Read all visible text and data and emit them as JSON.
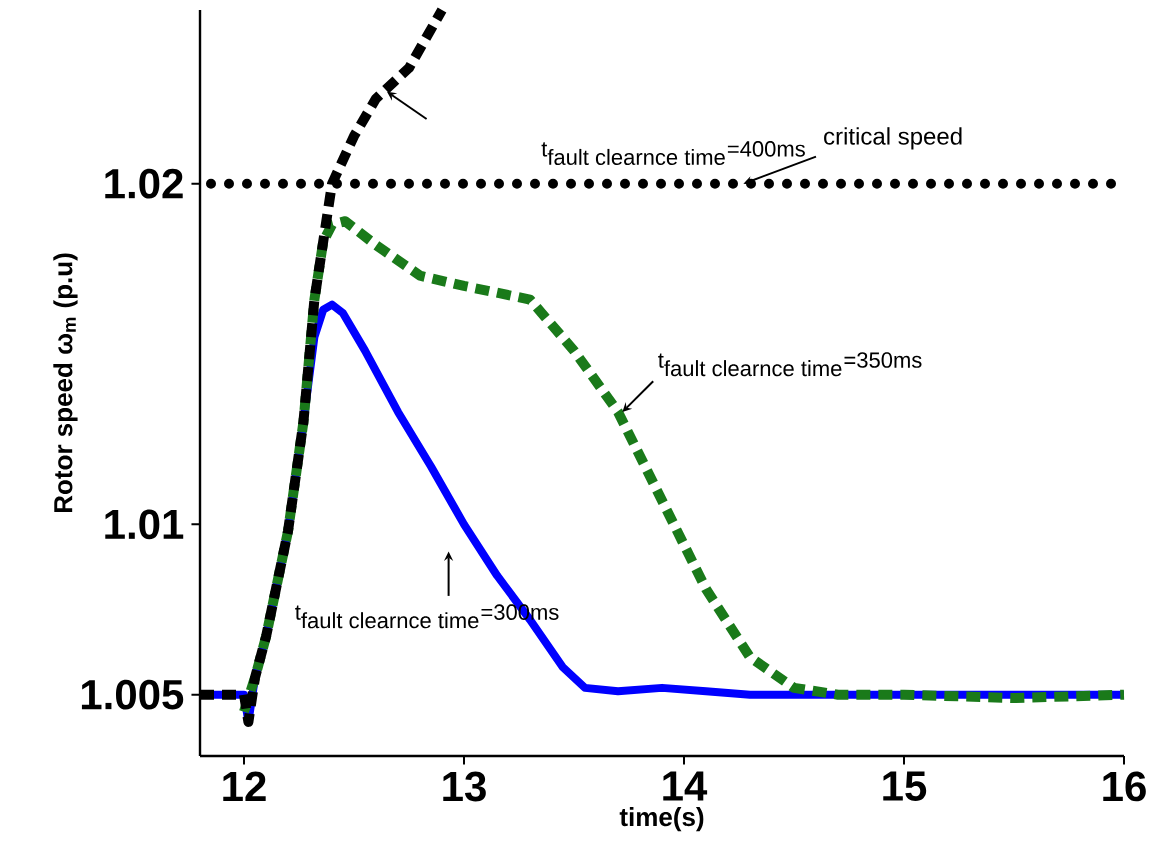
{
  "chart_data": {
    "type": "line",
    "xlabel": "time(s)",
    "ylabel": "Rotor speed ω$_{m}$ (p.u)",
    "xlim": [
      11.8,
      16
    ],
    "xticks": [
      12,
      13,
      14,
      15,
      16
    ],
    "ylim": [
      1.0032,
      1.0251
    ],
    "yticks": [
      1.005,
      1.01,
      1.02
    ],
    "grid": false,
    "series": [
      {
        "color": "#0000ff",
        "line_style": "solid",
        "x": [
          11.8,
          12.0,
          12.02,
          12.05,
          12.1,
          12.2,
          12.27,
          12.32,
          12.36,
          12.4,
          12.45,
          12.55,
          12.7,
          12.85,
          13.0,
          13.15,
          13.3,
          13.45,
          13.55,
          13.7,
          13.9,
          14.1,
          14.3,
          15.0,
          16.0
        ],
        "values": [
          1.005,
          1.005,
          1.0042,
          1.0055,
          1.0067,
          1.0098,
          1.013,
          1.0155,
          1.0163,
          1.01645,
          1.0162,
          1.0151,
          1.0133,
          1.0117,
          1.01,
          1.0085,
          1.0072,
          1.0058,
          1.0052,
          1.0051,
          1.0052,
          1.0051,
          1.005,
          1.005,
          1.005
        ]
      },
      {
        "color": "#1a7a1a",
        "line_style": "dashed",
        "x": [
          12.0,
          12.05,
          12.1,
          12.2,
          12.27,
          12.32,
          12.36,
          12.4,
          12.46,
          12.6,
          12.8,
          13.0,
          13.3,
          13.5,
          13.7,
          13.9,
          14.1,
          14.3,
          14.5,
          14.7,
          15.0,
          15.5,
          16.0
        ],
        "values": [
          1.0045,
          1.0055,
          1.0067,
          1.0098,
          1.013,
          1.0166,
          1.0183,
          1.0188,
          1.0189,
          1.0182,
          1.0173,
          1.017,
          1.0166,
          1.0151,
          1.0133,
          1.0107,
          1.0081,
          1.0061,
          1.0052,
          1.005,
          1.005,
          1.0049,
          1.005
        ]
      },
      {
        "color": "#000000",
        "line_style": "dashed",
        "x": [
          11.8,
          12.0,
          12.02,
          12.05,
          12.1,
          12.2,
          12.27,
          12.32,
          12.36,
          12.4,
          12.5,
          12.6,
          12.75,
          12.9
        ],
        "values": [
          1.005,
          1.005,
          1.0042,
          1.0055,
          1.0067,
          1.0098,
          1.013,
          1.0166,
          1.0183,
          1.02,
          1.0214,
          1.0225,
          1.0234,
          1.0251
        ]
      }
    ],
    "ref_lines": [
      {
        "axis": "y",
        "value": 1.02,
        "label": "critical speed",
        "color": "#000000",
        "line_style": "dotted"
      }
    ],
    "annotations": [
      "\\textrm{t}_{\\textrm{fault clearnce time}}\\textrm{=400ms}",
      "\\textrm{t}_{\\textrm{fault clearnce time}}\\textrm{=350ms}",
      "\\textrm{t}_{\\textrm{fault clearnce time}}\\textrm{=300ms}"
    ]
  }
}
